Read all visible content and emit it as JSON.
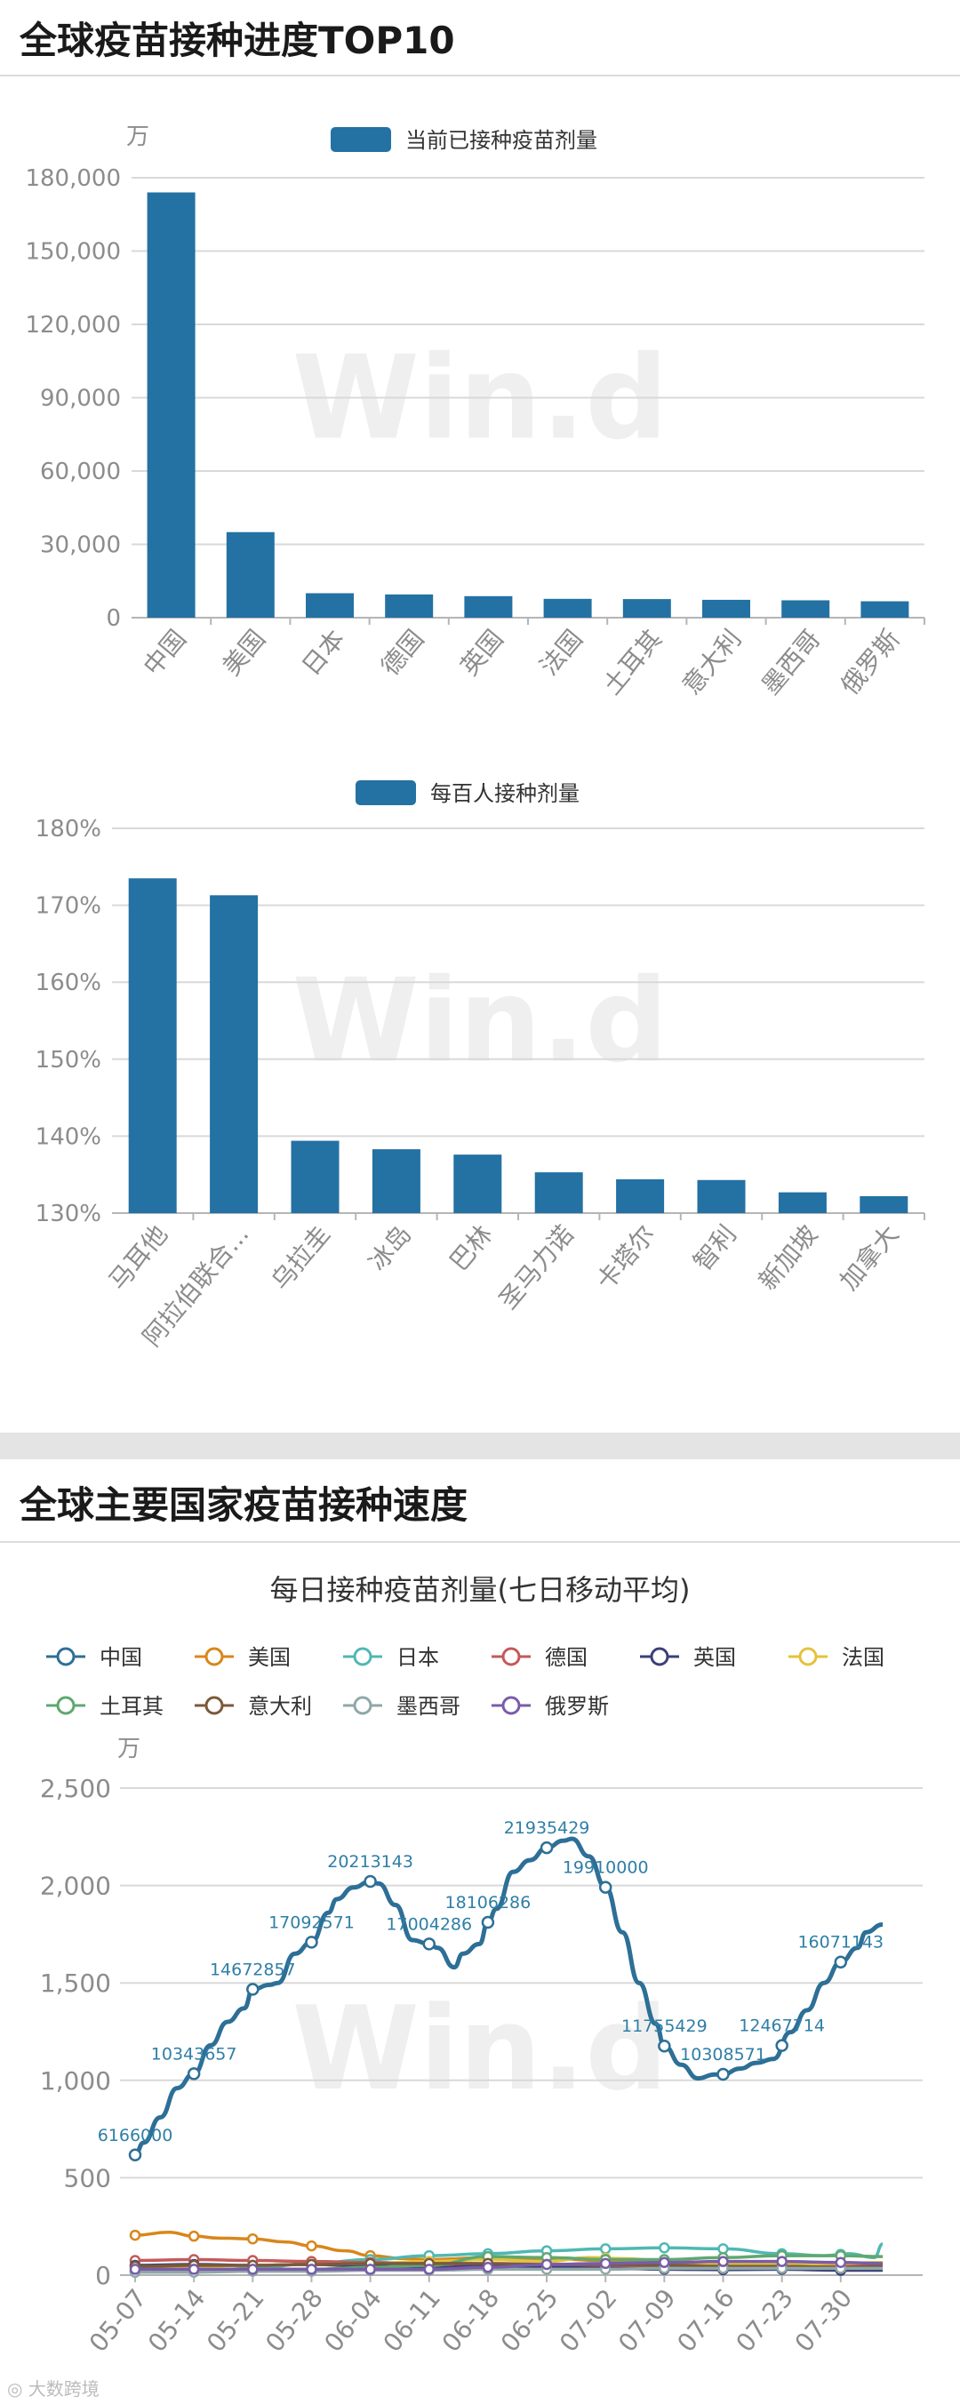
{
  "section1": {
    "title": "全球疫苗接种进度TOP10"
  },
  "section2": {
    "title": "全球主要国家疫苗接种速度"
  },
  "watermark": "Win.d",
  "footer": "大数跨境",
  "colors": {
    "bar": "#2471a3",
    "grid": "#d9d9d9",
    "axis": "#8c8c8c"
  },
  "chart_data": [
    {
      "type": "bar",
      "unit": "万",
      "series": [
        {
          "name": "当前已接种疫苗剂量",
          "values": [
            174000,
            35000,
            10000,
            9500,
            8800,
            7700,
            7600,
            7300,
            7100,
            6700
          ]
        }
      ],
      "categories": [
        "中国",
        "美国",
        "日本",
        "德国",
        "英国",
        "法国",
        "土耳其",
        "意大利",
        "墨西哥",
        "俄罗斯"
      ],
      "yticks": [
        "0",
        "30,000",
        "60,000",
        "90,000",
        "120,000",
        "150,000",
        "180,000"
      ],
      "ylim": [
        0,
        180000
      ]
    },
    {
      "type": "bar",
      "series": [
        {
          "name": "每百人接种剂量",
          "values": [
            173.5,
            171.3,
            139.4,
            138.3,
            137.6,
            135.3,
            134.4,
            134.3,
            132.7,
            132.2
          ]
        }
      ],
      "categories": [
        "马耳他",
        "阿拉伯联合...",
        "乌拉圭",
        "冰岛",
        "巴林",
        "圣马力诺",
        "卡塔尔",
        "智利",
        "新加坡",
        "加拿大"
      ],
      "yticks": [
        "130%",
        "140%",
        "150%",
        "160%",
        "170%",
        "180%"
      ],
      "ylim": [
        130,
        180
      ]
    },
    {
      "type": "line",
      "title": "每日接种疫苗剂量(七日移动平均)",
      "unit": "万",
      "yticks": [
        "0",
        "500",
        "1,000",
        "1,500",
        "2,000",
        "2,500"
      ],
      "ylim": [
        0,
        2500
      ],
      "xlim": [
        "05-07",
        "08-03"
      ],
      "xticks": [
        "05-07",
        "05-14",
        "05-21",
        "05-28",
        "06-04",
        "06-11",
        "06-18",
        "06-25",
        "07-02",
        "07-09",
        "07-16",
        "07-23",
        "07-30"
      ],
      "series": [
        {
          "name": "中国",
          "color": "#2d6f96",
          "points": [
            [
              0,
              617
            ],
            [
              1,
              680
            ],
            [
              3,
              810
            ],
            [
              5,
              960
            ],
            [
              7,
              1034
            ],
            [
              9,
              1180
            ],
            [
              11,
              1300
            ],
            [
              13,
              1370
            ],
            [
              14,
              1467
            ],
            [
              16,
              1490
            ],
            [
              17,
              1500
            ],
            [
              19,
              1650
            ],
            [
              21,
              1709
            ],
            [
              23,
              1860
            ],
            [
              24,
              1930
            ],
            [
              26,
              1990
            ],
            [
              28,
              2021
            ],
            [
              29,
              2010
            ],
            [
              31,
              1900
            ],
            [
              33,
              1720
            ],
            [
              35,
              1700
            ],
            [
              36,
              1680
            ],
            [
              38,
              1580
            ],
            [
              39,
              1650
            ],
            [
              41,
              1700
            ],
            [
              42,
              1811
            ],
            [
              43,
              1880
            ],
            [
              45,
              2070
            ],
            [
              47,
              2130
            ],
            [
              49,
              2194
            ],
            [
              51,
              2230
            ],
            [
              52,
              2240
            ],
            [
              54,
              2150
            ],
            [
              56,
              1991
            ],
            [
              58,
              1760
            ],
            [
              60,
              1500
            ],
            [
              62,
              1290
            ],
            [
              63,
              1176
            ],
            [
              65,
              1080
            ],
            [
              67,
              1010
            ],
            [
              69,
              1030
            ],
            [
              70,
              1031
            ],
            [
              72,
              1060
            ],
            [
              74,
              1090
            ],
            [
              76,
              1110
            ],
            [
              78,
              1247
            ],
            [
              80,
              1360
            ],
            [
              82,
              1500
            ],
            [
              84,
              1607
            ],
            [
              86,
              1680
            ],
            [
              87,
              1760
            ],
            [
              89,
              1800
            ]
          ],
          "labels": [
            [
              0,
              "6166000"
            ],
            [
              7,
              "10343657"
            ],
            [
              14,
              "14672857"
            ],
            [
              21,
              "17092571"
            ],
            [
              28,
              "20213143"
            ],
            [
              35,
              "17004286"
            ],
            [
              42,
              "18106286"
            ],
            [
              49,
              "21935429"
            ],
            [
              56,
              "19910000"
            ],
            [
              63,
              "11755429"
            ],
            [
              70,
              "10308571"
            ],
            [
              77,
              "12467714"
            ],
            [
              84,
              "16071143"
            ]
          ]
        },
        {
          "name": "美国",
          "color": "#d9861a",
          "points": [
            [
              0,
              205
            ],
            [
              4,
              220
            ],
            [
              7,
              200
            ],
            [
              10,
              190
            ],
            [
              14,
              186
            ],
            [
              18,
              170
            ],
            [
              21,
              150
            ],
            [
              25,
              125
            ],
            [
              28,
              100
            ],
            [
              32,
              85
            ],
            [
              35,
              80
            ],
            [
              42,
              90
            ],
            [
              49,
              85
            ],
            [
              56,
              75
            ],
            [
              63,
              65
            ],
            [
              70,
              60
            ],
            [
              77,
              55
            ],
            [
              84,
              55
            ],
            [
              89,
              60
            ]
          ]
        },
        {
          "name": "日本",
          "color": "#4fb8b3",
          "points": [
            [
              0,
              15
            ],
            [
              7,
              20
            ],
            [
              14,
              35
            ],
            [
              21,
              60
            ],
            [
              28,
              80
            ],
            [
              35,
              100
            ],
            [
              42,
              110
            ],
            [
              49,
              125
            ],
            [
              56,
              135
            ],
            [
              63,
              140
            ],
            [
              70,
              135
            ],
            [
              77,
              110
            ],
            [
              82,
              100
            ],
            [
              85,
              110
            ],
            [
              88,
              90
            ],
            [
              89,
              160
            ]
          ]
        },
        {
          "name": "德国",
          "color": "#c45a5a",
          "points": [
            [
              0,
              75
            ],
            [
              7,
              80
            ],
            [
              14,
              75
            ],
            [
              21,
              70
            ],
            [
              28,
              65
            ],
            [
              35,
              60
            ],
            [
              42,
              55
            ],
            [
              49,
              50
            ],
            [
              56,
              45
            ],
            [
              63,
              40
            ],
            [
              70,
              40
            ],
            [
              77,
              45
            ],
            [
              84,
              50
            ],
            [
              89,
              55
            ]
          ]
        },
        {
          "name": "英国",
          "color": "#3b3f7a",
          "points": [
            [
              0,
              50
            ],
            [
              7,
              55
            ],
            [
              14,
              50
            ],
            [
              21,
              55
            ],
            [
              28,
              45
            ],
            [
              35,
              40
            ],
            [
              42,
              45
            ],
            [
              49,
              40
            ],
            [
              56,
              35
            ],
            [
              63,
              30
            ],
            [
              70,
              28
            ],
            [
              77,
              30
            ],
            [
              84,
              25
            ],
            [
              89,
              25
            ]
          ]
        },
        {
          "name": "法国",
          "color": "#e5c23b",
          "points": [
            [
              0,
              40
            ],
            [
              7,
              45
            ],
            [
              14,
              50
            ],
            [
              21,
              55
            ],
            [
              28,
              60
            ],
            [
              35,
              70
            ],
            [
              42,
              80
            ],
            [
              49,
              70
            ],
            [
              54,
              90
            ],
            [
              58,
              85
            ],
            [
              63,
              75
            ],
            [
              70,
              60
            ],
            [
              77,
              55
            ],
            [
              84,
              60
            ],
            [
              89,
              65
            ]
          ]
        },
        {
          "name": "土耳其",
          "color": "#5fa870",
          "points": [
            [
              0,
              20
            ],
            [
              7,
              25
            ],
            [
              14,
              30
            ],
            [
              21,
              30
            ],
            [
              28,
              40
            ],
            [
              35,
              50
            ],
            [
              42,
              95
            ],
            [
              49,
              90
            ],
            [
              56,
              80
            ],
            [
              63,
              80
            ],
            [
              70,
              90
            ],
            [
              77,
              100
            ],
            [
              84,
              100
            ],
            [
              89,
              95
            ]
          ]
        },
        {
          "name": "意大利",
          "color": "#7a5a3a",
          "points": [
            [
              0,
              45
            ],
            [
              7,
              50
            ],
            [
              14,
              50
            ],
            [
              21,
              55
            ],
            [
              28,
              60
            ],
            [
              35,
              60
            ],
            [
              42,
              60
            ],
            [
              49,
              55
            ],
            [
              56,
              55
            ],
            [
              63,
              50
            ],
            [
              70,
              45
            ],
            [
              77,
              45
            ],
            [
              84,
              40
            ],
            [
              89,
              45
            ]
          ]
        },
        {
          "name": "墨西哥",
          "color": "#8fa8a8",
          "points": [
            [
              0,
              15
            ],
            [
              7,
              15
            ],
            [
              14,
              20
            ],
            [
              21,
              20
            ],
            [
              28,
              25
            ],
            [
              35,
              25
            ],
            [
              42,
              30
            ],
            [
              49,
              30
            ],
            [
              56,
              30
            ],
            [
              63,
              35
            ],
            [
              70,
              35
            ],
            [
              77,
              35
            ],
            [
              84,
              35
            ],
            [
              89,
              35
            ]
          ]
        },
        {
          "name": "俄罗斯",
          "color": "#7a5ca8",
          "points": [
            [
              0,
              30
            ],
            [
              7,
              30
            ],
            [
              14,
              30
            ],
            [
              21,
              30
            ],
            [
              28,
              30
            ],
            [
              35,
              30
            ],
            [
              42,
              40
            ],
            [
              49,
              55
            ],
            [
              56,
              60
            ],
            [
              63,
              65
            ],
            [
              70,
              70
            ],
            [
              77,
              70
            ],
            [
              84,
              65
            ],
            [
              89,
              60
            ]
          ]
        }
      ]
    }
  ]
}
